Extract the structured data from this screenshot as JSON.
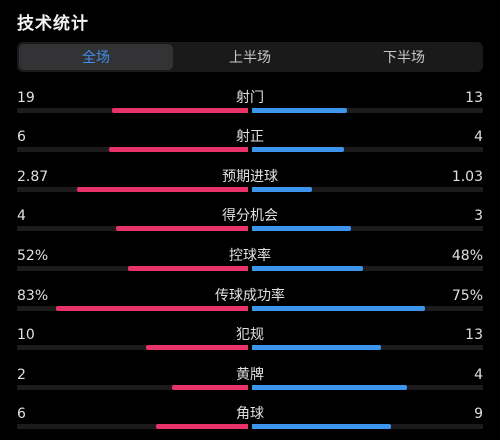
{
  "header": {
    "title": "技术统计"
  },
  "tabs": [
    {
      "label": "全场",
      "active": true
    },
    {
      "label": "上半场",
      "active": false
    },
    {
      "label": "下半场",
      "active": false
    }
  ],
  "colors": {
    "home": "#e8336a",
    "away": "#3e95ee",
    "active_tab": "#3f8ef0"
  },
  "stats": [
    {
      "label": "射门",
      "home": "19",
      "away": "13",
      "home_share": 0.59,
      "away_share": 0.41
    },
    {
      "label": "射正",
      "home": "6",
      "away": "4",
      "home_share": 0.6,
      "away_share": 0.4
    },
    {
      "label": "预期进球",
      "home": "2.87",
      "away": "1.03",
      "home_share": 0.74,
      "away_share": 0.26
    },
    {
      "label": "得分机会",
      "home": "4",
      "away": "3",
      "home_share": 0.57,
      "away_share": 0.43
    },
    {
      "label": "控球率",
      "home": "52%",
      "away": "48%",
      "home_share": 0.52,
      "away_share": 0.48
    },
    {
      "label": "传球成功率",
      "home": "83%",
      "away": "75%",
      "home_share": 0.83,
      "away_share": 0.75
    },
    {
      "label": "犯规",
      "home": "10",
      "away": "13",
      "home_share": 0.44,
      "away_share": 0.56
    },
    {
      "label": "黄牌",
      "home": "2",
      "away": "4",
      "home_share": 0.33,
      "away_share": 0.67
    },
    {
      "label": "角球",
      "home": "6",
      "away": "9",
      "home_share": 0.4,
      "away_share": 0.6
    }
  ]
}
